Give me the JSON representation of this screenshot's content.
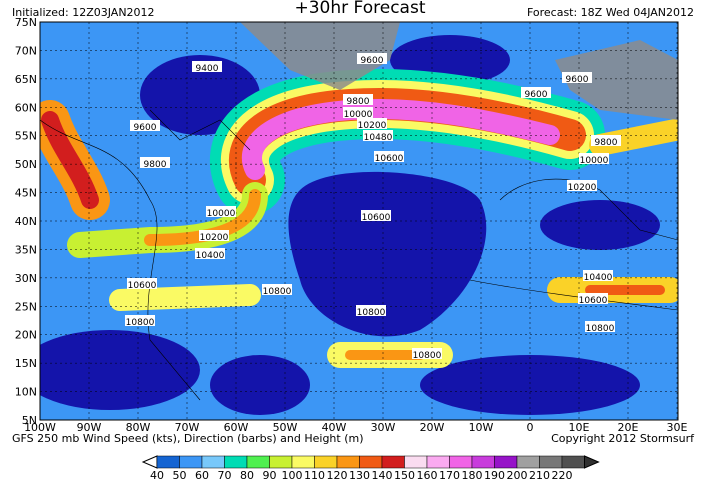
{
  "header": {
    "initialized": "Initialized: 12Z03JAN2012",
    "title": "+30hr Forecast",
    "forecast": "Forecast: 18Z Wed 04JAN2012"
  },
  "map": {
    "lat_labels": [
      "75N",
      "70N",
      "65N",
      "60N",
      "55N",
      "50N",
      "45N",
      "40N",
      "35N",
      "30N",
      "25N",
      "20N",
      "15N",
      "10N",
      "5N"
    ],
    "lon_labels": [
      "100W",
      "90W",
      "80W",
      "70W",
      "60W",
      "50W",
      "40W",
      "30W",
      "20W",
      "10W",
      "0",
      "10E",
      "20E",
      "30E"
    ],
    "contour_labels": [
      "9400",
      "9600",
      "9600",
      "9600",
      "9600",
      "9800",
      "10000",
      "10200",
      "10480",
      "10600",
      "9800",
      "10000",
      "10200",
      "9800",
      "10000",
      "10200",
      "10400",
      "10600",
      "10600",
      "10800",
      "10800",
      "10800",
      "10400",
      "10600",
      "10800",
      "10800"
    ]
  },
  "footer": {
    "caption": "GFS 250 mb Wind Speed (kts), Direction (barbs) and Height (m)",
    "copyright": "Copyright 2012 Stormsurf"
  },
  "colorbar": {
    "values": [
      40,
      50,
      60,
      70,
      80,
      90,
      100,
      110,
      120,
      130,
      140,
      150,
      160,
      170,
      180,
      190,
      200,
      210,
      220
    ],
    "colors": [
      "#1464d2",
      "#3c96f5",
      "#78c8fa",
      "#00dcb4",
      "#50f050",
      "#c8f032",
      "#fafa64",
      "#fad228",
      "#fa9614",
      "#f05a14",
      "#d21e1e",
      "#fadcf0",
      "#faaaf0",
      "#f064e6",
      "#c83cdc",
      "#9614c8",
      "#a0a0a0",
      "#787878",
      "#505050"
    ]
  }
}
